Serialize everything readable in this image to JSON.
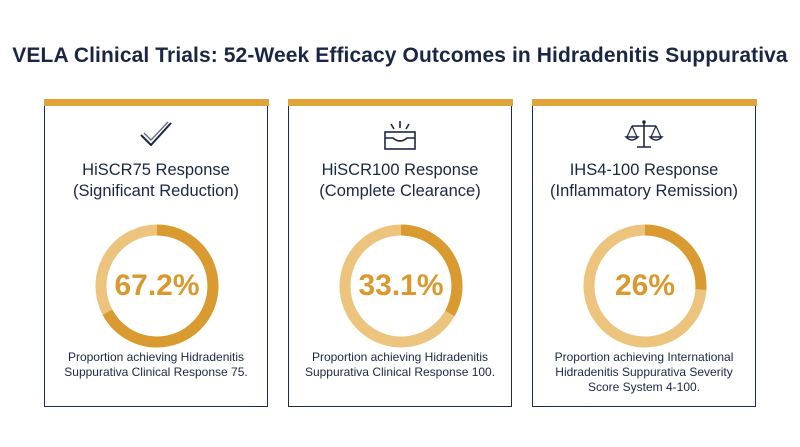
{
  "title": "VELA Clinical Trials: 52-Week Efficacy Outcomes in Hidradenitis Suppurativa",
  "colors": {
    "accent": "#e0a43a",
    "ring_fill": "#d99a30",
    "ring_track": "#ecc47e",
    "navy": "#1a2744"
  },
  "cards": [
    {
      "icon": "checkmark-icon",
      "heading_line1": "HiSCR75 Response",
      "heading_line2": "(Significant Reduction)",
      "value_label": "67.2%",
      "value": 67.2,
      "desc_line1": "Proportion achieving Hidradenitis",
      "desc_line2": "Suppurativa Clinical Response 75.",
      "desc_line3": ""
    },
    {
      "icon": "skin-clearance-icon",
      "heading_line1": "HiSCR100 Response",
      "heading_line2": "(Complete Clearance)",
      "value_label": "33.1%",
      "value": 33.1,
      "desc_line1": "Proportion achieving Hidradenitis",
      "desc_line2": "Suppurativa Clinical Response 100.",
      "desc_line3": ""
    },
    {
      "icon": "balance-scale-icon",
      "heading_line1": "IHS4-100 Response",
      "heading_line2": "(Inflammatory Remission)",
      "value_label": "26%",
      "value": 26,
      "desc_line1": "Proportion achieving International",
      "desc_line2": "Hidradenitis Suppurativa Severity",
      "desc_line3": "Score System 4-100."
    }
  ]
}
